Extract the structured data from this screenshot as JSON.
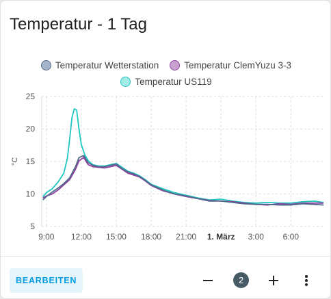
{
  "card": {
    "title": "Temperatur - 1 Tag"
  },
  "footer": {
    "edit_label": "BEARBEITEN",
    "counter": "2"
  },
  "icons": {
    "minus": "minus-icon",
    "plus": "plus-icon",
    "more": "more-vert-icon"
  },
  "colors": {
    "accent": "#039be5",
    "badge": "#455a64"
  },
  "chart_data": {
    "type": "line",
    "ylabel": "°C",
    "ylim": [
      5,
      25
    ],
    "yticks": [
      "5",
      "10",
      "15",
      "20",
      "25"
    ],
    "xlim": [
      8.6,
      32.8
    ],
    "xticks": [
      {
        "pos": 9,
        "label": "9:00",
        "bold": false
      },
      {
        "pos": 12,
        "label": "12:00",
        "bold": false
      },
      {
        "pos": 15,
        "label": "15:00",
        "bold": false
      },
      {
        "pos": 18,
        "label": "18:00",
        "bold": false
      },
      {
        "pos": 21,
        "label": "21:00",
        "bold": false
      },
      {
        "pos": 24,
        "label": "1. März",
        "bold": true
      },
      {
        "pos": 27,
        "label": "3:00",
        "bold": false
      },
      {
        "pos": 30,
        "label": "6:00",
        "bold": false
      }
    ],
    "grid": true,
    "legend_position": "top",
    "series": [
      {
        "name": "Temperatur Wetterstation",
        "color": "#50698a",
        "fill": "#a4b4c8",
        "x": [
          8.7,
          9.0,
          9.5,
          10.0,
          10.5,
          11.0,
          11.5,
          11.8,
          12.2,
          12.6,
          13.0,
          13.5,
          14.0,
          14.5,
          15.0,
          15.5,
          16.0,
          16.5,
          17.0,
          17.5,
          18.0,
          19.0,
          20.0,
          21.0,
          22.0,
          23.0,
          24.0,
          25.0,
          26.0,
          27.0,
          28.0,
          29.0,
          30.0,
          31.0,
          32.0,
          32.8
        ],
        "y": [
          9.1,
          9.6,
          10.3,
          10.9,
          11.6,
          12.5,
          14.2,
          15.6,
          15.9,
          14.8,
          14.4,
          14.2,
          14.2,
          14.4,
          14.6,
          13.9,
          13.4,
          13.1,
          12.7,
          12.1,
          11.4,
          10.6,
          10.0,
          9.7,
          9.3,
          8.9,
          8.9,
          8.7,
          8.5,
          8.4,
          8.4,
          8.3,
          8.3,
          8.5,
          8.4,
          8.3
        ]
      },
      {
        "name": "Temperatur ClemYuzu 3-3",
        "color": "#8e3fa0",
        "fill": "#c7a2d0",
        "x": [
          8.7,
          9.0,
          9.5,
          10.0,
          10.5,
          11.0,
          11.5,
          11.8,
          12.2,
          12.6,
          13.0,
          13.5,
          14.0,
          14.5,
          15.0,
          15.5,
          16.0,
          16.5,
          17.0,
          17.5,
          18.0,
          19.0,
          20.0,
          21.0,
          22.0,
          23.0,
          24.0,
          25.0,
          26.0,
          27.0,
          28.0,
          29.0,
          30.0,
          31.0,
          32.0,
          32.8
        ],
        "y": [
          9.4,
          9.7,
          10.0,
          10.6,
          11.4,
          12.2,
          13.8,
          15.1,
          15.6,
          14.5,
          14.2,
          14.1,
          14.0,
          14.2,
          14.4,
          13.8,
          13.2,
          12.9,
          12.6,
          12.0,
          11.3,
          10.5,
          10.0,
          9.6,
          9.3,
          9.0,
          8.9,
          8.8,
          8.6,
          8.4,
          8.3,
          8.5,
          8.4,
          8.6,
          8.6,
          8.6
        ]
      },
      {
        "name": "Temperatur US119",
        "color": "#1ec6c0",
        "fill": "#a3ece8",
        "x": [
          8.7,
          9.0,
          9.5,
          10.0,
          10.5,
          10.8,
          11.0,
          11.2,
          11.4,
          11.6,
          11.8,
          12.0,
          12.3,
          12.6,
          13.0,
          13.5,
          14.0,
          14.5,
          15.0,
          15.5,
          16.0,
          16.5,
          17.0,
          17.5,
          18.0,
          19.0,
          20.0,
          21.0,
          22.0,
          23.0,
          24.0,
          25.0,
          26.0,
          27.0,
          28.0,
          29.0,
          30.0,
          31.0,
          32.0,
          32.8
        ],
        "y": [
          9.6,
          10.2,
          10.8,
          11.8,
          13.2,
          15.5,
          18.5,
          21.8,
          23.1,
          22.9,
          20.0,
          17.6,
          16.0,
          15.1,
          14.5,
          14.3,
          14.3,
          14.5,
          14.7,
          14.1,
          13.5,
          13.2,
          12.8,
          12.2,
          11.5,
          10.8,
          10.2,
          9.8,
          9.4,
          9.1,
          9.2,
          8.9,
          8.7,
          8.6,
          8.7,
          8.6,
          8.6,
          8.8,
          8.9,
          8.7
        ]
      }
    ]
  }
}
